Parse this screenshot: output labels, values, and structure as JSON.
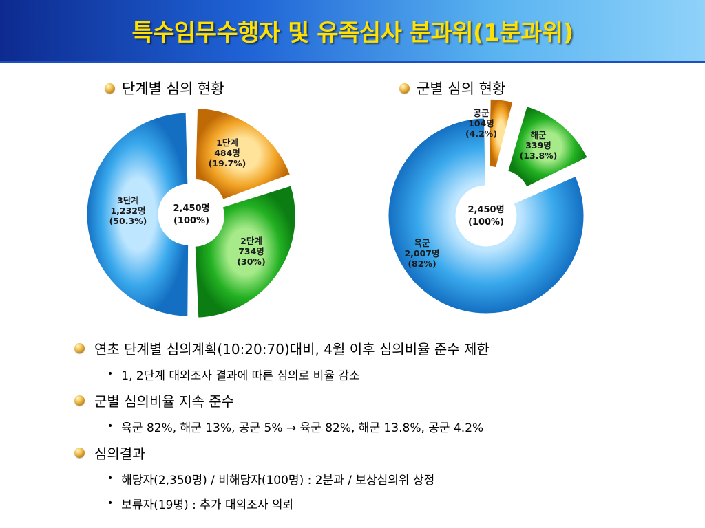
{
  "title": "특수임무수행자 및 유족심사 분과위(1분과위)",
  "stage_chart": {
    "heading": "단계별 심의 현황",
    "center": [
      "2,450명",
      "(100%)"
    ]
  },
  "branch_chart": {
    "heading": "군별 심의 현황",
    "center": [
      "2,450명",
      "(100%)"
    ]
  },
  "chart_data": [
    {
      "type": "pie",
      "title": "단계별 심의 현황",
      "categories": [
        "1단계",
        "2단계",
        "3단계"
      ],
      "values": [
        484,
        734,
        1232
      ],
      "percent_labels": [
        "(19.7%)",
        "(30%)",
        "(50.3%)"
      ],
      "value_labels": [
        "484명",
        "734명",
        "1,232명"
      ],
      "total": 2450,
      "colors": [
        "#f0a020",
        "#1ea61e",
        "#2a9be6"
      ]
    },
    {
      "type": "pie",
      "title": "군별 심의 현황",
      "categories": [
        "공군",
        "해군",
        "육군"
      ],
      "values": [
        104,
        339,
        2007
      ],
      "percent_labels": [
        "(4.2%)",
        "(13.8%)",
        "(82%)"
      ],
      "value_labels": [
        "104명",
        "339명",
        "2,007명"
      ],
      "total": 2450,
      "colors": [
        "#f0a020",
        "#1ea61e",
        "#2a9be6"
      ]
    }
  ],
  "bullets": [
    {
      "text": "연초 단계별 심의계획(10:20:70)대비, 4월 이후 심의비율 준수 제한",
      "subs": [
        "1, 2단계 대외조사 결과에 따른 심의로 비율 감소"
      ]
    },
    {
      "text": "군별 심의비율 지속 준수",
      "subs": [
        "육군 82%, 해군 13%, 공군 5% → 육군 82%, 해군 13.8%, 공군 4.2%"
      ]
    },
    {
      "text": "심의결과",
      "subs": [
        "해당자(2,350명) / 비해당자(100명) : 2분과 / 보상심의위 상정",
        "보류자(19명) : 추가 대외조사 의뢰"
      ]
    }
  ]
}
